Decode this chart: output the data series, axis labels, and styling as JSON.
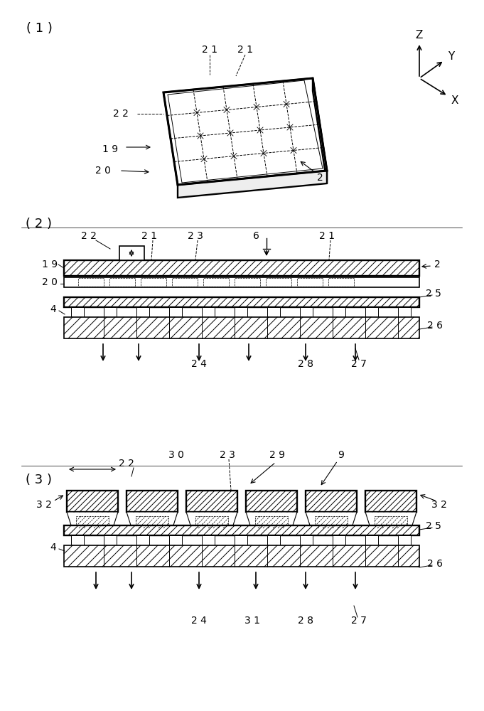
{
  "bg_color": "#ffffff",
  "line_color": "#000000",
  "fig_width": 6.81,
  "fig_height": 10.0,
  "panel1_label": "( 1 )",
  "panel2_label": "( 2 )",
  "panel3_label": "( 3 )"
}
